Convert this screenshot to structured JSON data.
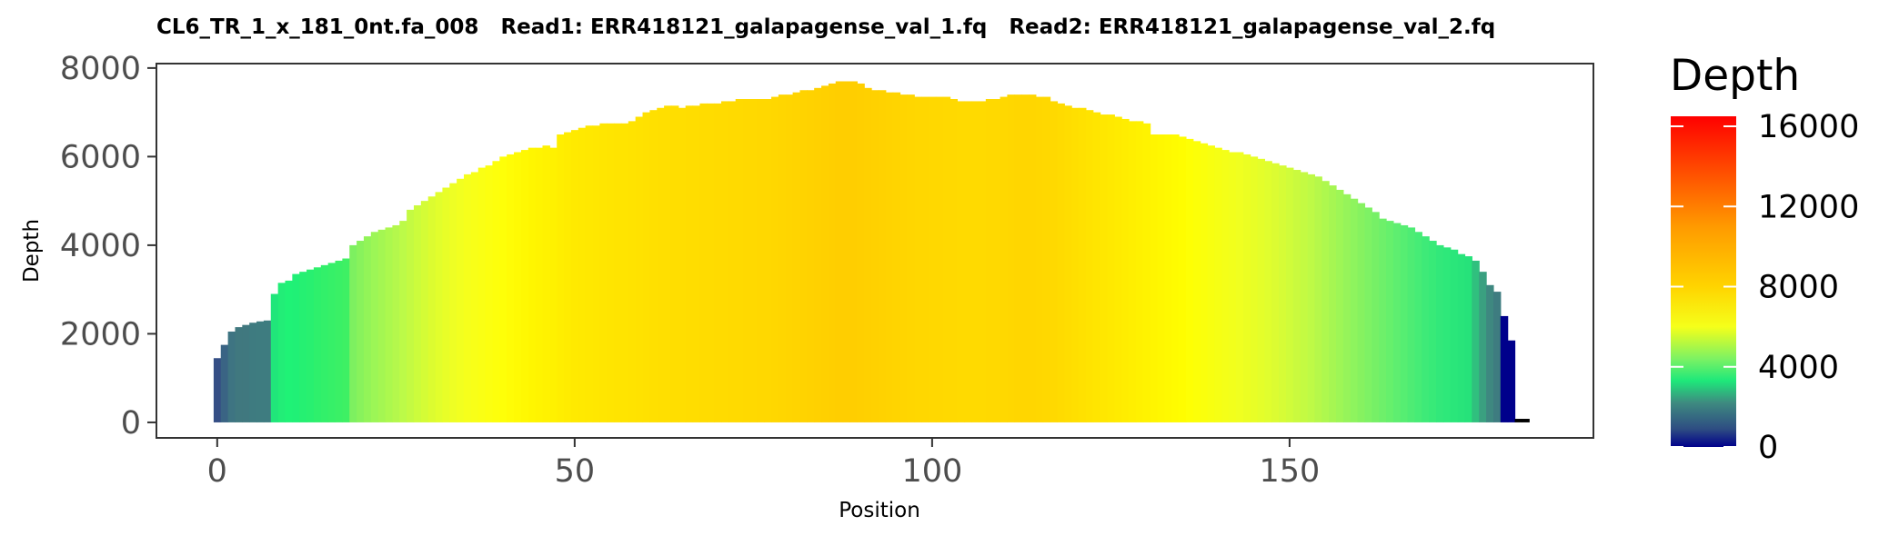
{
  "chart_data": {
    "type": "bar",
    "title": "CL6_TR_1_x_181_0nt.fa_008   Read1: ERR418121_galapagense_val_1.fq   Read2: ERR418121_galapagense_val_2.fq",
    "xlabel": "Position",
    "ylabel": "Depth",
    "xlim": [
      -8.5,
      192.5
    ],
    "ylim": [
      -350,
      8100
    ],
    "x_ticks": [
      0,
      50,
      100,
      150
    ],
    "x_tick_labels": [
      "0",
      "50",
      "100",
      "150"
    ],
    "y_ticks": [
      0,
      2000,
      4000,
      6000,
      8000
    ],
    "y_tick_labels": [
      "0",
      "2000",
      "4000",
      "6000",
      "8000"
    ],
    "grid": false,
    "color_scale": {
      "title": "Depth",
      "min": 0,
      "max": 16500,
      "ticks": [
        0,
        4000,
        8000,
        12000,
        16000
      ],
      "tick_labels": [
        "0",
        "4000",
        "8000",
        "12000",
        "16000"
      ],
      "stops": [
        {
          "v": 0,
          "color": "#00008b"
        },
        {
          "v": 900,
          "color": "#2e4d82"
        },
        {
          "v": 2200,
          "color": "#3e8a80"
        },
        {
          "v": 3300,
          "color": "#1ee87a"
        },
        {
          "v": 4400,
          "color": "#7cf263"
        },
        {
          "v": 6000,
          "color": "#f5ff1a"
        },
        {
          "v": 8000,
          "color": "#ffd400"
        },
        {
          "v": 11000,
          "color": "#ff9a00"
        },
        {
          "v": 16500,
          "color": "#ff0000"
        }
      ]
    },
    "positions": [
      0,
      1,
      2,
      3,
      4,
      5,
      6,
      7,
      8,
      9,
      10,
      11,
      12,
      13,
      14,
      15,
      16,
      17,
      18,
      19,
      20,
      21,
      22,
      23,
      24,
      25,
      26,
      27,
      28,
      29,
      30,
      31,
      32,
      33,
      34,
      35,
      36,
      37,
      38,
      39,
      40,
      41,
      42,
      43,
      44,
      45,
      46,
      47,
      48,
      49,
      50,
      51,
      52,
      53,
      54,
      55,
      56,
      57,
      58,
      59,
      60,
      61,
      62,
      63,
      64,
      65,
      66,
      67,
      68,
      69,
      70,
      71,
      72,
      73,
      74,
      75,
      76,
      77,
      78,
      79,
      80,
      81,
      82,
      83,
      84,
      85,
      86,
      87,
      88,
      89,
      90,
      91,
      92,
      93,
      94,
      95,
      96,
      97,
      98,
      99,
      100,
      101,
      102,
      103,
      104,
      105,
      106,
      107,
      108,
      109,
      110,
      111,
      112,
      113,
      114,
      115,
      116,
      117,
      118,
      119,
      120,
      121,
      122,
      123,
      124,
      125,
      126,
      127,
      128,
      129,
      130,
      131,
      132,
      133,
      134,
      135,
      136,
      137,
      138,
      139,
      140,
      141,
      142,
      143,
      144,
      145,
      146,
      147,
      148,
      149,
      150,
      151,
      152,
      153,
      154,
      155,
      156,
      157,
      158,
      159,
      160,
      161,
      162,
      163,
      164,
      165,
      166,
      167,
      168,
      169,
      170,
      171,
      172,
      173,
      174,
      175,
      176,
      177,
      178,
      179,
      180,
      181,
      182,
      183
    ],
    "values": [
      1450,
      1750,
      2050,
      2150,
      2200,
      2250,
      2280,
      2300,
      2900,
      3150,
      3200,
      3350,
      3400,
      3450,
      3500,
      3550,
      3600,
      3650,
      3700,
      4000,
      4100,
      4200,
      4300,
      4350,
      4400,
      4450,
      4550,
      4800,
      4900,
      5000,
      5100,
      5200,
      5300,
      5400,
      5500,
      5600,
      5650,
      5750,
      5800,
      5900,
      6000,
      6050,
      6100,
      6150,
      6200,
      6200,
      6250,
      6200,
      6500,
      6550,
      6600,
      6650,
      6700,
      6700,
      6750,
      6750,
      6750,
      6750,
      6800,
      6900,
      7000,
      7050,
      7100,
      7150,
      7150,
      7100,
      7150,
      7150,
      7200,
      7200,
      7200,
      7250,
      7250,
      7300,
      7300,
      7300,
      7300,
      7300,
      7350,
      7400,
      7400,
      7450,
      7500,
      7500,
      7550,
      7600,
      7650,
      7700,
      7700,
      7700,
      7650,
      7550,
      7500,
      7500,
      7450,
      7450,
      7400,
      7400,
      7350,
      7350,
      7350,
      7350,
      7350,
      7300,
      7250,
      7250,
      7250,
      7250,
      7300,
      7300,
      7350,
      7400,
      7400,
      7400,
      7400,
      7350,
      7350,
      7250,
      7200,
      7150,
      7100,
      7100,
      7050,
      7000,
      6950,
      6950,
      6900,
      6850,
      6800,
      6800,
      6750,
      6500,
      6500,
      6500,
      6500,
      6450,
      6400,
      6350,
      6300,
      6250,
      6200,
      6150,
      6100,
      6100,
      6050,
      6000,
      5950,
      5900,
      5850,
      5800,
      5750,
      5700,
      5650,
      5600,
      5550,
      5450,
      5350,
      5250,
      5150,
      5050,
      4950,
      4850,
      4750,
      4600,
      4550,
      4500,
      4450,
      4400,
      4300,
      4200,
      4100,
      4000,
      3950,
      3900,
      3800,
      3750,
      3650,
      3400,
      3100,
      2950,
      2400,
      1850,
      80,
      80
    ],
    "bar_colors": [
      "#344e85",
      "#3a6484",
      "#3e7482",
      "#40787f",
      "#40787f",
      "#3e7b80",
      "#3e7c80",
      "#3e7c80",
      "#20e67a",
      "#22ed77",
      "#1ff276",
      "#20f076",
      "#25f072",
      "#28f070",
      "#2ef06c",
      "#32f06a",
      "#36f068",
      "#3af066",
      "#3ef064",
      "#7df060",
      "#88f25c",
      "#92f458",
      "#9cf656",
      "#a4f652",
      "#acf84e",
      "#b4f84c",
      "#bcfa48",
      "#c4fa42",
      "#ccfc3c",
      "#d4fc36",
      "#dcfc30",
      "#e2fe2c",
      "#e8fe28",
      "#eefe24",
      "#f2ff20",
      "#f6ff1c",
      "#f8ff18",
      "#faff14",
      "#fcff10",
      "#fdff0c",
      "#feff08",
      "#fffc06",
      "#fffa04",
      "#fff802",
      "#fff600",
      "#fff400",
      "#fff200",
      "#fff100",
      "#ffee00",
      "#ffec00",
      "#ffea00",
      "#ffe900",
      "#ffe800",
      "#ffe700",
      "#ffe600",
      "#ffe500",
      "#ffe400",
      "#ffe400",
      "#ffe300",
      "#ffe200",
      "#ffe100",
      "#ffe000",
      "#ffdf00",
      "#ffdf00",
      "#ffde00",
      "#ffde00",
      "#ffdd00",
      "#ffdd00",
      "#ffdc00",
      "#ffdc00",
      "#ffdb00",
      "#ffdb00",
      "#ffda00",
      "#ffda00",
      "#ffd900",
      "#ffd900",
      "#ffd800",
      "#ffd800",
      "#ffd700",
      "#ffd600",
      "#ffd500",
      "#ffd400",
      "#ffd300",
      "#ffd200",
      "#ffd100",
      "#ffd000",
      "#ffcf00",
      "#ffce00",
      "#ffce00",
      "#ffce00",
      "#ffcf00",
      "#ffd000",
      "#ffd100",
      "#ffd200",
      "#ffd300",
      "#ffd400",
      "#ffd500",
      "#ffd600",
      "#ffd700",
      "#ffd700",
      "#ffd800",
      "#ffd800",
      "#ffd900",
      "#ffd900",
      "#ffda00",
      "#ffda00",
      "#ffda00",
      "#ffda00",
      "#ffd900",
      "#ffd900",
      "#ffd800",
      "#ffd700",
      "#ffd600",
      "#ffd600",
      "#ffd600",
      "#ffd700",
      "#ffd800",
      "#ffd900",
      "#ffdb00",
      "#ffdd00",
      "#ffdf00",
      "#ffe100",
      "#ffe300",
      "#ffe500",
      "#ffe700",
      "#ffe900",
      "#ffeb00",
      "#ffed00",
      "#ffef00",
      "#fff100",
      "#fff300",
      "#fff500",
      "#fff700",
      "#fff900",
      "#fffb00",
      "#fffd00",
      "#feff04",
      "#fcff08",
      "#faff0c",
      "#f8ff10",
      "#f6ff14",
      "#f4ff18",
      "#f2ff1c",
      "#f0ff20",
      "#ecfe22",
      "#e8fe26",
      "#e4fe2a",
      "#e0fe2e",
      "#dcfc32",
      "#d6fc36",
      "#d0fc3a",
      "#cafa3e",
      "#c4fa42",
      "#befa46",
      "#b6f84a",
      "#aef84e",
      "#a6f652",
      "#9ef656",
      "#96f45a",
      "#8ef45e",
      "#86f260",
      "#7ef264",
      "#76f066",
      "#6ef06a",
      "#66f06c",
      "#5eee70",
      "#56ee72",
      "#4eec74",
      "#46ec76",
      "#3eea78",
      "#38ea78",
      "#32e87a",
      "#2ee87a",
      "#2ae67a",
      "#28e47a",
      "#26e27a",
      "#30c07e",
      "#3aa080",
      "#3e8880",
      "#3e7c80",
      "#00008b",
      "#00008b"
    ]
  }
}
